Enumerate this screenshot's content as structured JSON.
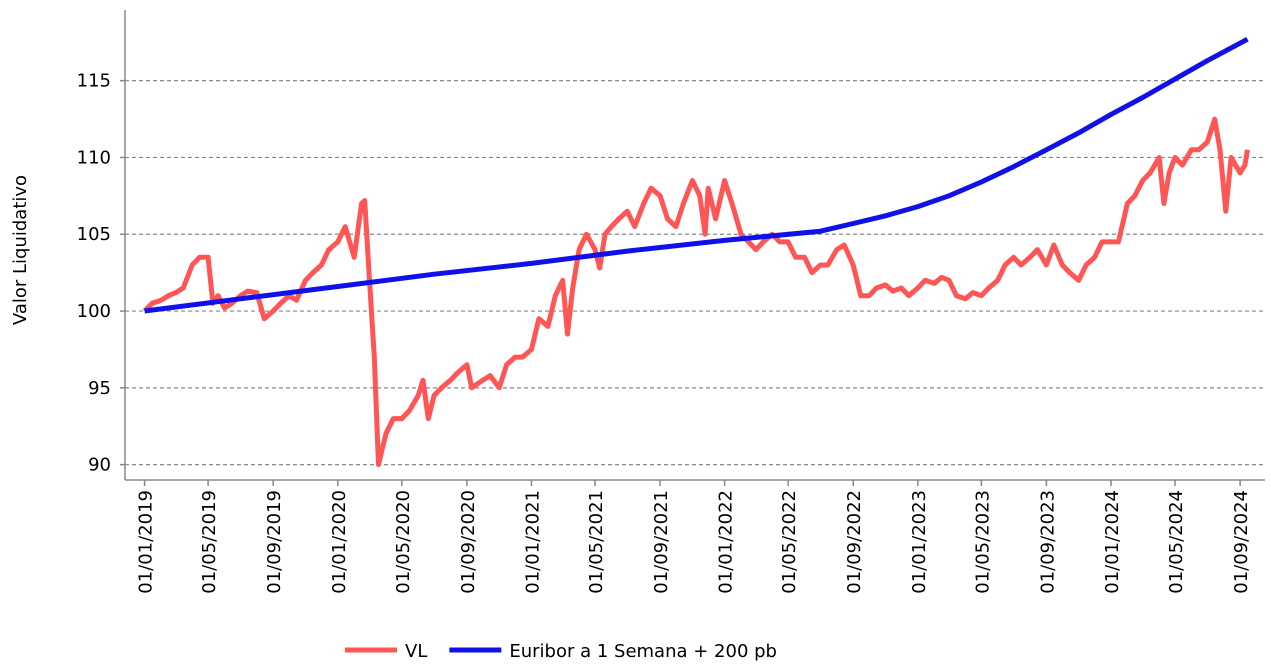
{
  "chart_data": {
    "type": "line",
    "y_label": "Valor Liquidativo",
    "ylim": [
      89,
      119.6
    ],
    "yticks": [
      90,
      95,
      100,
      105,
      110,
      115
    ],
    "grid": true,
    "xlim": [
      "25/11/2018",
      "18/10/2024"
    ],
    "xticks": [
      "01/01/2019",
      "01/05/2019",
      "01/09/2019",
      "01/01/2020",
      "01/05/2020",
      "01/09/2020",
      "01/01/2021",
      "01/05/2021",
      "01/09/2021",
      "01/01/2022",
      "01/05/2022",
      "01/09/2022",
      "01/01/2023",
      "01/05/2023",
      "01/09/2023",
      "01/01/2024",
      "01/05/2024",
      "01/09/2024"
    ],
    "legend": "bottom",
    "series": [
      {
        "name": "VL",
        "color": "#ff5555",
        "x": [
          "01/01/2019",
          "15/01/2019",
          "01/02/2019",
          "15/02/2019",
          "01/03/2019",
          "15/03/2019",
          "01/04/2019",
          "15/04/2019",
          "01/05/2019",
          "10/05/2019",
          "20/05/2019",
          "01/06/2019",
          "15/06/2019",
          "01/07/2019",
          "15/07/2019",
          "01/08/2019",
          "15/08/2019",
          "01/09/2019",
          "15/09/2019",
          "01/10/2019",
          "15/10/2019",
          "01/11/2019",
          "15/11/2019",
          "01/12/2019",
          "15/12/2019",
          "01/01/2020",
          "15/01/2020",
          "01/02/2020",
          "15/02/2020",
          "21/02/2020",
          "01/03/2020",
          "10/03/2020",
          "18/03/2020",
          "01/04/2020",
          "15/04/2020",
          "01/05/2020",
          "15/05/2020",
          "01/06/2020",
          "10/06/2020",
          "20/06/2020",
          "01/07/2020",
          "15/07/2020",
          "01/08/2020",
          "15/08/2020",
          "01/09/2020",
          "10/09/2020",
          "01/10/2020",
          "15/10/2020",
          "01/11/2020",
          "15/11/2020",
          "01/12/2020",
          "15/12/2020",
          "01/01/2021",
          "15/01/2021",
          "01/02/2021",
          "15/02/2021",
          "01/03/2021",
          "10/03/2021",
          "20/03/2021",
          "01/04/2021",
          "15/04/2021",
          "01/05/2021",
          "10/05/2021",
          "20/05/2021",
          "01/06/2021",
          "15/06/2021",
          "01/07/2021",
          "15/07/2021",
          "01/08/2021",
          "15/08/2021",
          "01/09/2021",
          "15/09/2021",
          "01/10/2021",
          "15/10/2021",
          "01/11/2021",
          "15/11/2021",
          "25/11/2021",
          "01/12/2021",
          "15/12/2021",
          "01/01/2022",
          "15/01/2022",
          "01/02/2022",
          "15/02/2022",
          "01/03/2022",
          "15/03/2022",
          "01/04/2022",
          "15/04/2022",
          "01/05/2022",
          "15/05/2022",
          "01/06/2022",
          "15/06/2022",
          "01/07/2022",
          "15/07/2022",
          "01/08/2022",
          "15/08/2022",
          "01/09/2022",
          "15/09/2022",
          "01/10/2022",
          "15/10/2022",
          "01/11/2022",
          "15/11/2022",
          "01/12/2022",
          "15/12/2022",
          "01/01/2023",
          "15/01/2023",
          "01/02/2023",
          "15/02/2023",
          "01/03/2023",
          "15/03/2023",
          "01/04/2023",
          "15/04/2023",
          "01/05/2023",
          "15/05/2023",
          "01/06/2023",
          "15/06/2023",
          "01/07/2023",
          "15/07/2023",
          "01/08/2023",
          "15/08/2023",
          "01/09/2023",
          "15/09/2023",
          "01/10/2023",
          "15/10/2023",
          "01/11/2023",
          "15/11/2023",
          "01/12/2023",
          "15/12/2023",
          "01/01/2024",
          "15/01/2024",
          "01/02/2024",
          "15/02/2024",
          "01/03/2024",
          "15/03/2024",
          "01/04/2024",
          "10/04/2024",
          "20/04/2024",
          "01/05/2024",
          "15/05/2024",
          "01/06/2024",
          "15/06/2024",
          "01/07/2024",
          "15/07/2024",
          "25/07/2024",
          "05/08/2024",
          "15/08/2024",
          "01/09/2024",
          "10/09/2024",
          "15/09/2024"
        ],
        "values": [
          100.0,
          100.5,
          100.7,
          101.0,
          101.2,
          101.5,
          103.0,
          103.5,
          103.5,
          100.5,
          101.0,
          100.2,
          100.5,
          101.0,
          101.3,
          101.2,
          99.5,
          100.0,
          100.5,
          101.0,
          100.7,
          102.0,
          102.5,
          103.0,
          104.0,
          104.5,
          105.5,
          103.5,
          107.0,
          107.2,
          102.0,
          97.0,
          90.0,
          92.0,
          93.0,
          93.0,
          93.5,
          94.5,
          95.5,
          93.0,
          94.5,
          95.0,
          95.5,
          96.0,
          96.5,
          95.0,
          95.5,
          95.8,
          95.0,
          96.5,
          97.0,
          97.0,
          97.5,
          99.5,
          99.0,
          101.0,
          102.0,
          98.5,
          101.5,
          104.0,
          105.0,
          104.0,
          102.8,
          105.0,
          105.5,
          106.0,
          106.5,
          105.5,
          107.0,
          108.0,
          107.5,
          106.0,
          105.5,
          107.0,
          108.5,
          107.5,
          105.0,
          108.0,
          106.0,
          108.5,
          107.0,
          105.0,
          104.5,
          104.0,
          104.5,
          105.0,
          104.5,
          104.5,
          103.5,
          103.5,
          102.5,
          103.0,
          103.0,
          104.0,
          104.3,
          103.0,
          101.0,
          101.0,
          101.5,
          101.7,
          101.3,
          101.5,
          101.0,
          101.5,
          102.0,
          101.8,
          102.2,
          102.0,
          101.0,
          100.8,
          101.2,
          101.0,
          101.5,
          102.0,
          103.0,
          103.5,
          103.0,
          103.5,
          104.0,
          103.0,
          104.3,
          103.0,
          102.5,
          102.0,
          103.0,
          103.5,
          104.5,
          104.5,
          104.5,
          107.0,
          107.5,
          108.5,
          109.0,
          110.0,
          107.0,
          109.0,
          110.0,
          109.5,
          110.5,
          110.5,
          111.0,
          112.5,
          110.5,
          106.5,
          110.0,
          109.0,
          109.5,
          110.5
        ]
      },
      {
        "name": "Euribor a 1 Semana + 200 pb",
        "color": "#1010e8",
        "x": [
          "01/01/2019",
          "01/07/2019",
          "01/01/2020",
          "01/07/2020",
          "01/01/2021",
          "01/07/2021",
          "01/01/2022",
          "01/07/2022",
          "01/09/2022",
          "01/11/2022",
          "01/01/2023",
          "01/03/2023",
          "01/05/2023",
          "01/07/2023",
          "01/09/2023",
          "01/11/2023",
          "01/01/2024",
          "01/03/2024",
          "01/05/2024",
          "01/07/2024",
          "15/09/2024"
        ],
        "values": [
          100.0,
          100.8,
          101.6,
          102.4,
          103.1,
          103.9,
          104.6,
          105.2,
          105.7,
          106.2,
          106.8,
          107.5,
          108.4,
          109.4,
          110.5,
          111.6,
          112.8,
          113.9,
          115.1,
          116.3,
          117.7
        ]
      }
    ]
  }
}
